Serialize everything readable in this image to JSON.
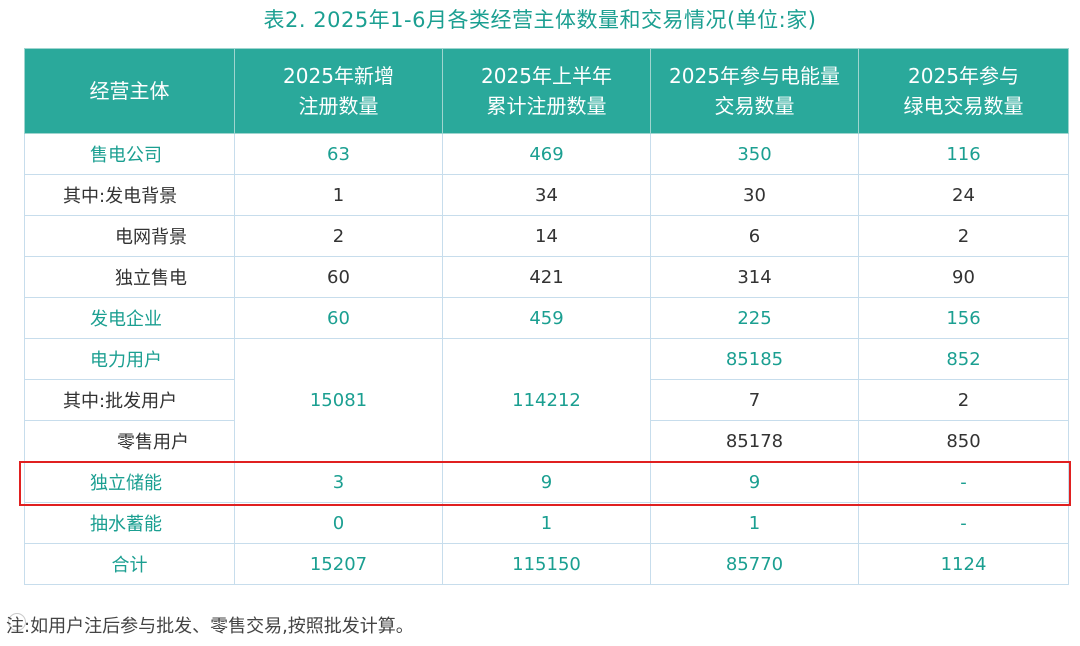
{
  "caption": "表2. 2025年1-6月各类经营主体数量和交易情况(单位:家)",
  "headers": {
    "col1": "经营主体",
    "col2_l1": "2025年新增",
    "col2_l2": "注册数量",
    "col3_l1": "2025年上半年",
    "col3_l2": "累计注册数量",
    "col4_l1": "2025年参与电能量",
    "col4_l2": "交易数量",
    "col5_l1": "2025年参与",
    "col5_l2": "绿电交易数量"
  },
  "rows": {
    "sdgs": {
      "name": "售电公司",
      "new": "63",
      "cum": "469",
      "energy": "350",
      "green": "116"
    },
    "fdbj": {
      "name": "其中:发电背景",
      "new": "1",
      "cum": "34",
      "energy": "30",
      "green": "24"
    },
    "dwbj": {
      "name": "电网背景",
      "new": "2",
      "cum": "14",
      "energy": "6",
      "green": "2"
    },
    "dlsd": {
      "name": "独立售电",
      "new": "60",
      "cum": "421",
      "energy": "314",
      "green": "90"
    },
    "fdqy": {
      "name": "发电企业",
      "new": "60",
      "cum": "459",
      "energy": "225",
      "green": "156"
    },
    "dlyh": {
      "name": "电力用户",
      "new": "15081",
      "cum": "114212",
      "energy": "85185",
      "green": "852"
    },
    "pfyh": {
      "name": "其中:批发用户",
      "energy": "7",
      "green": "2"
    },
    "lsyh": {
      "name": "零售用户",
      "energy": "85178",
      "green": "850"
    },
    "dlcn": {
      "name": "独立储能",
      "new": "3",
      "cum": "9",
      "energy": "9",
      "green": "-"
    },
    "csxn": {
      "name": "抽水蓄能",
      "new": "0",
      "cum": "1",
      "energy": "1",
      "green": "-"
    },
    "total": {
      "name": "合计",
      "new": "15207",
      "cum": "115150",
      "energy": "85770",
      "green": "1124"
    }
  },
  "footnote": "注:如用户注后参与批发、零售交易,按照批发计算。",
  "colors": {
    "header_bg": "#2aa99b",
    "accent_text": "#1b9f91",
    "highlight_border": "#e02020",
    "grid": "#c7ddec"
  }
}
